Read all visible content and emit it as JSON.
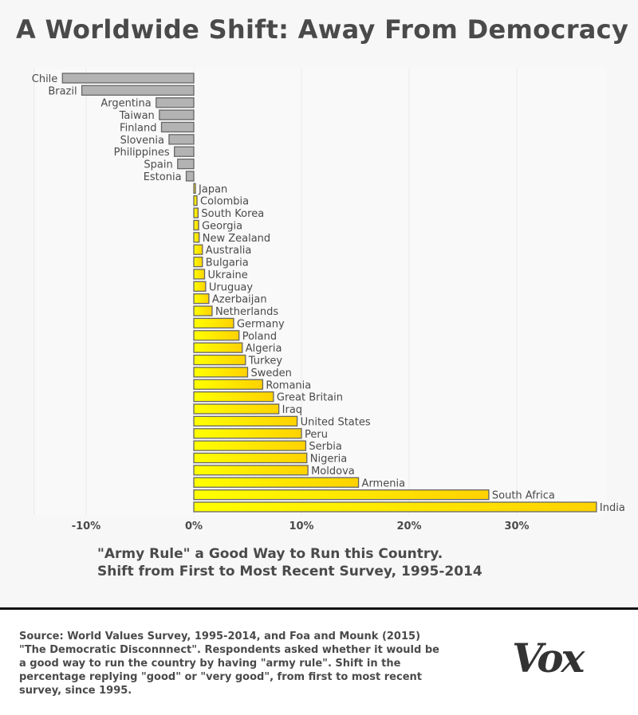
{
  "title": "A Worldwide Shift: Away From Democracy",
  "subtitle_line1": "\"Army Rule\" a Good Way to Run this Country.",
  "subtitle_line2": "Shift from First to Most Recent Survey, 1995-2014",
  "source": "Source: World Values Survey, 1995-2014, and Foa and Mounk (2015) \"The Democratic Disconnnect\". Respondents asked whether it would be a good way to run the country by having \"army rule\". Shift in the percentage replying \"good\" or \"very good\", from first to most recent survey, since 1995.",
  "logo": "Vox",
  "colors": {
    "negative": "#b3b3b3",
    "positive_start": "#ffff00",
    "positive_end": "#ffd200",
    "outline": "#666666",
    "text": "#4a4a4a"
  },
  "chart_data": {
    "type": "bar",
    "orientation": "horizontal",
    "xlim": [
      -15,
      38
    ],
    "xticks": [
      -10,
      0,
      10,
      20,
      30
    ],
    "xtick_labels": [
      "-10%",
      "0%",
      "10%",
      "20%",
      "30%"
    ],
    "grid": true,
    "categories": [
      "Chile",
      "Brazil",
      "Argentina",
      "Taiwan",
      "Finland",
      "Slovenia",
      "Philippines",
      "Spain",
      "Estonia",
      "Japan",
      "Colombia",
      "South Korea",
      "Georgia",
      "New Zealand",
      "Australia",
      "Bulgaria",
      "Ukraine",
      "Uruguay",
      "Azerbaijan",
      "Netherlands",
      "Germany",
      "Poland",
      "Algeria",
      "Turkey",
      "Sweden",
      "Romania",
      "Great Britain",
      "Iraq",
      "United States",
      "Peru",
      "Serbia",
      "Nigeria",
      "Moldova",
      "Armenia",
      "South Africa",
      "India"
    ],
    "values": [
      -12.2,
      -10.4,
      -3.5,
      -3.2,
      -3.0,
      -2.3,
      -1.8,
      -1.5,
      -0.7,
      0.15,
      0.3,
      0.4,
      0.45,
      0.5,
      0.8,
      0.8,
      1.0,
      1.1,
      1.4,
      1.7,
      3.7,
      4.2,
      4.5,
      4.8,
      5.0,
      6.4,
      7.4,
      7.9,
      9.6,
      10.0,
      10.4,
      10.5,
      10.6,
      15.3,
      27.4,
      37.4
    ]
  }
}
